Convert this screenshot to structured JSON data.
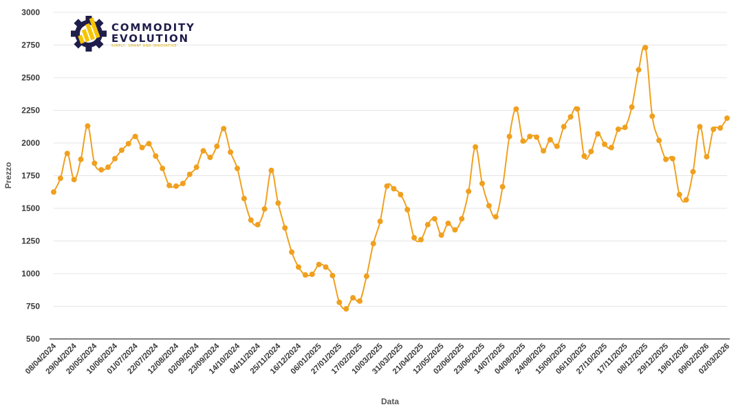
{
  "logo": {
    "line1": "COMMODITY",
    "line2": "EVOLUTION",
    "tagline": "SIMPLY, SMART AND INNOVATIVE",
    "primary_color": "#1f1d4a",
    "accent_color": "#f5c400"
  },
  "colors": {
    "series": "#f0a01e",
    "grid": "#e4e4e4",
    "axis": "#333333"
  },
  "chart_data": {
    "type": "line",
    "xlabel": "Data",
    "ylabel": "Prezzo",
    "ylim": [
      500,
      3000
    ],
    "yticks": [
      500,
      750,
      1000,
      1250,
      1500,
      1750,
      2000,
      2250,
      2500,
      2750,
      3000
    ],
    "grid": true,
    "x_tick_labels": [
      "08/04/2024",
      "29/04/2024",
      "20/05/2024",
      "10/06/2024",
      "01/07/2024",
      "22/07/2024",
      "12/08/2024",
      "02/09/2024",
      "23/09/2024",
      "14/10/2024",
      "04/11/2024",
      "25/11/2024",
      "16/12/2024",
      "06/01/2025",
      "27/01/2025",
      "17/02/2025",
      "10/03/2025",
      "31/03/2025",
      "21/04/2025",
      "12/05/2025",
      "02/06/2025",
      "23/06/2025",
      "14/07/2025",
      "04/08/2025",
      "24/08/2025",
      "15/09/2025",
      "06/10/2025",
      "27/10/2025",
      "17/11/2025",
      "08/12/2025",
      "29/12/2025",
      "19/01/2026",
      "09/02/2026",
      "02/03/2026"
    ],
    "x_tick_positions": [
      0,
      3,
      6,
      9,
      12,
      15,
      18,
      21,
      24,
      27,
      30,
      33,
      36,
      39,
      42,
      45,
      48,
      51,
      54,
      57,
      60,
      63,
      66,
      69,
      72,
      75,
      78,
      81,
      84,
      87,
      90,
      93,
      96,
      99
    ],
    "series": [
      {
        "values": [
          1625,
          1730,
          1920,
          1720,
          1875,
          2130,
          1845,
          1795,
          1815,
          1880,
          1945,
          1995,
          2050,
          1965,
          1995,
          1900,
          1805,
          1675,
          1670,
          1690,
          1760,
          1815,
          1940,
          1890,
          1975,
          2110,
          1930,
          1805,
          1575,
          1410,
          1375,
          1495,
          1790,
          1540,
          1350,
          1165,
          1050,
          990,
          995,
          1070,
          1050,
          985,
          780,
          730,
          815,
          790,
          980,
          1230,
          1400,
          1670,
          1650,
          1605,
          1490,
          1275,
          1260,
          1375,
          1420,
          1295,
          1385,
          1335,
          1420,
          1630,
          1970,
          1690,
          1520,
          1435,
          1665,
          2050,
          2260,
          2015,
          2050,
          2045,
          1940,
          2025,
          1975,
          2125,
          2200,
          2260,
          1900,
          1935,
          2070,
          1990,
          1965,
          2105,
          2120,
          2275,
          2560,
          2730,
          2205,
          2020,
          1875,
          1880,
          1605,
          1565,
          1780,
          2125,
          1895,
          2105,
          2115,
          2190
        ]
      }
    ]
  }
}
